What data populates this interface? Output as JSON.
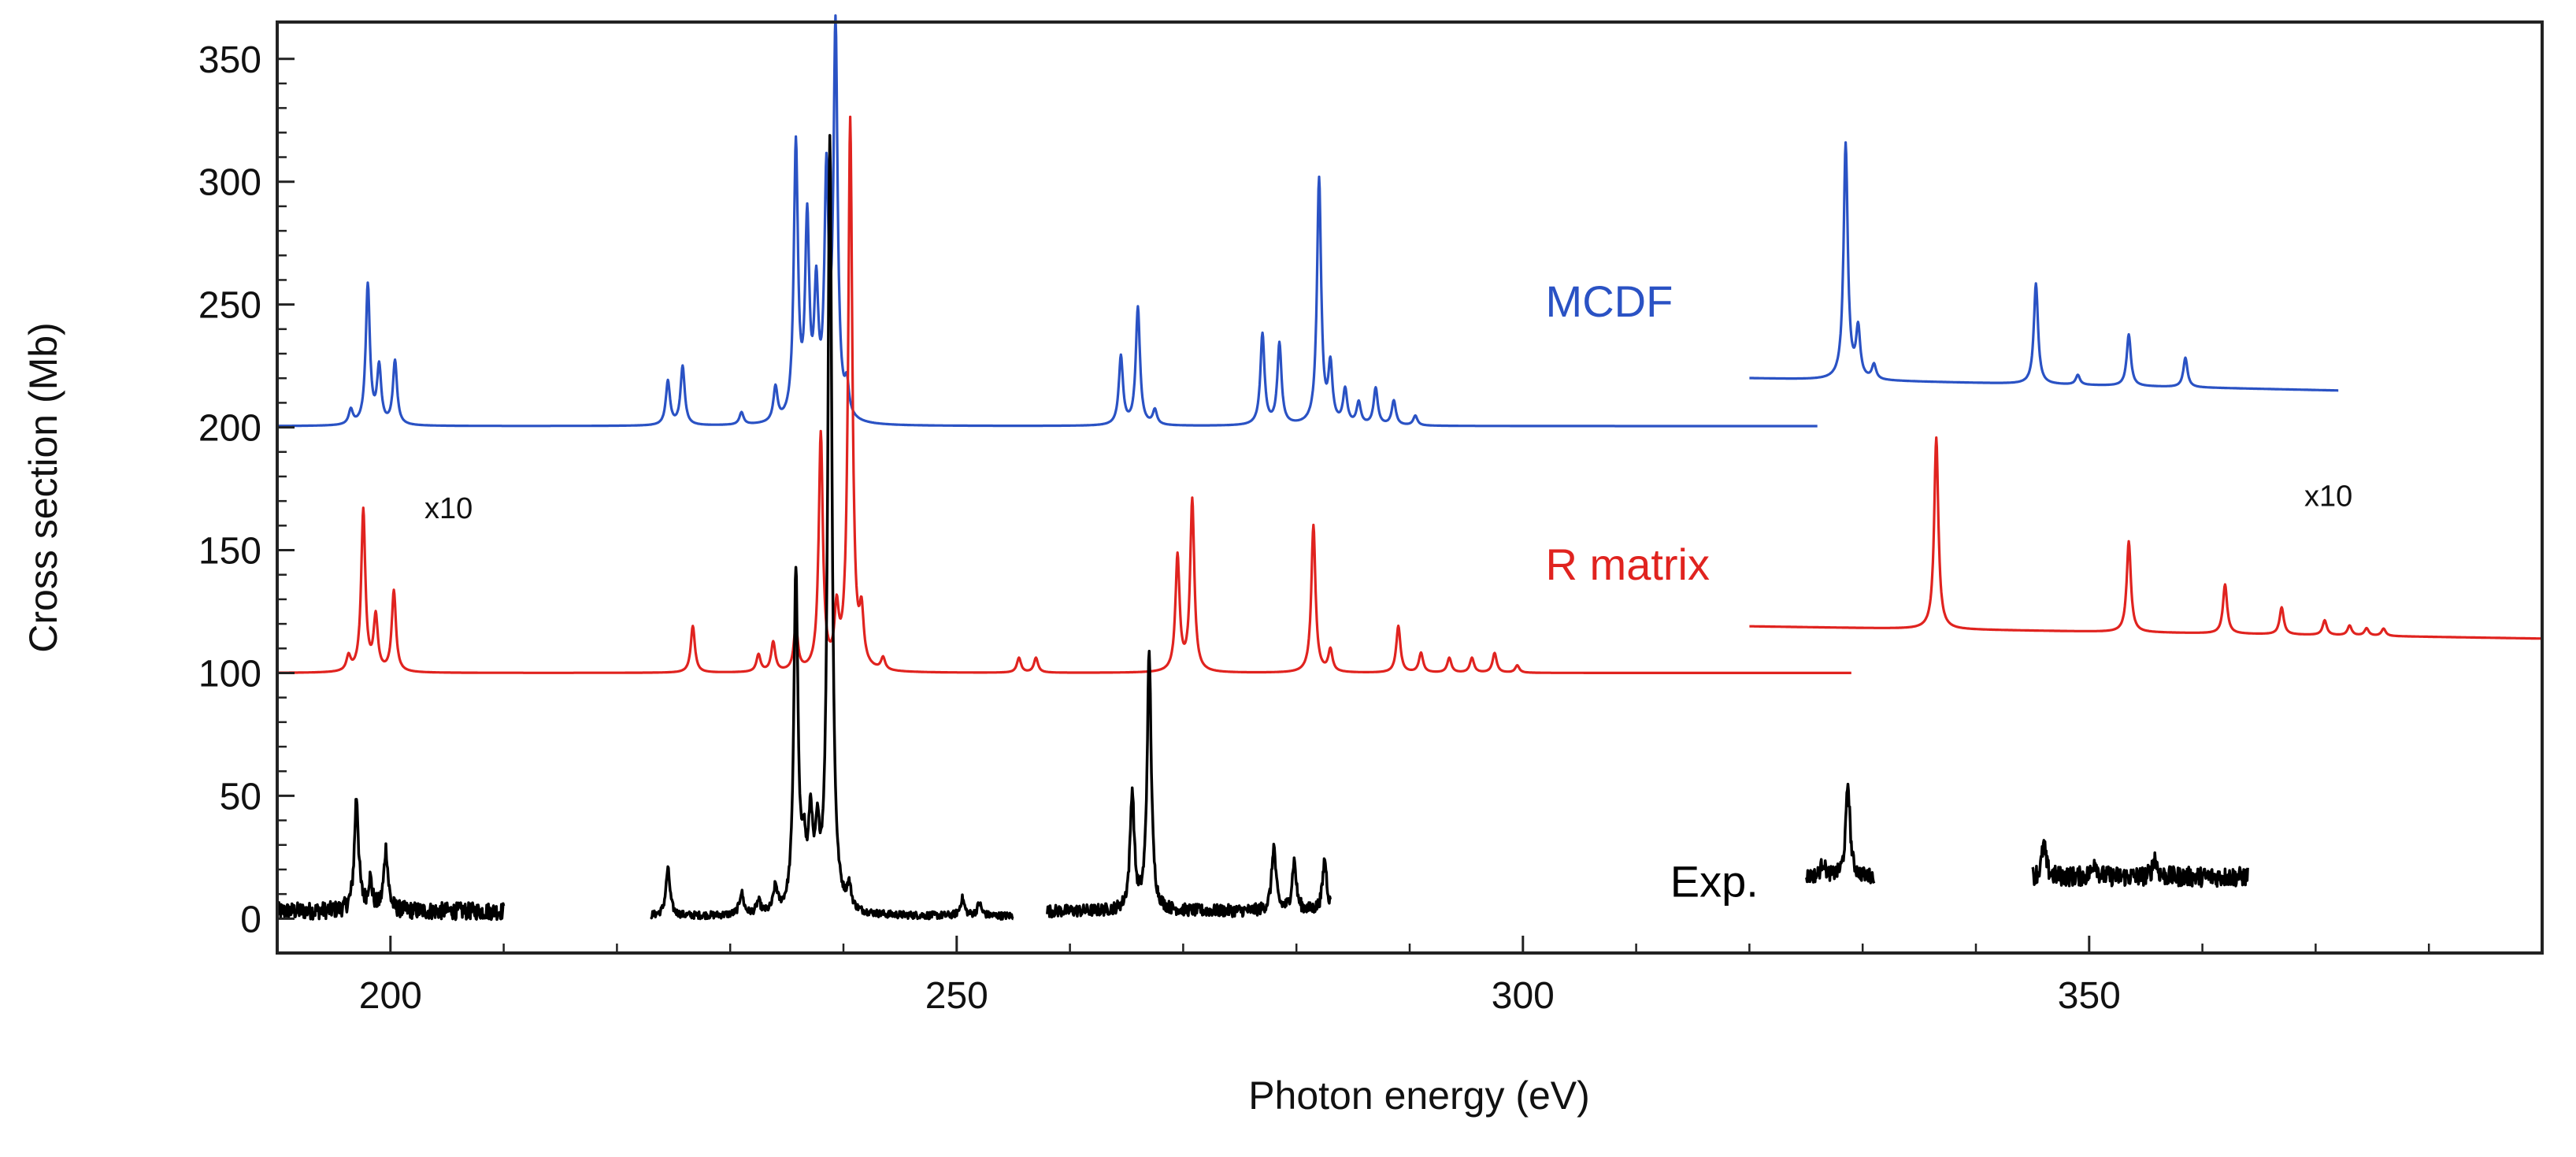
{
  "chart_data": {
    "type": "line",
    "title": "",
    "xlabel": "Photon energy (eV)",
    "ylabel": "Cross section (Mb)",
    "xlim": [
      190,
      390
    ],
    "ylim": [
      -14,
      365
    ],
    "xticks": [
      200,
      250,
      300,
      350
    ],
    "yticks": [
      0,
      50,
      100,
      150,
      200,
      250,
      300,
      350
    ],
    "grid": false,
    "annotations": [
      {
        "text": "MCDF",
        "series": "MCDF",
        "x": 302,
        "y": 245
      },
      {
        "text": "R matrix",
        "series": "R matrix",
        "x": 302,
        "y": 138
      },
      {
        "text": "Exp.",
        "series": "Exp.",
        "x": 313,
        "y": 9
      },
      {
        "text": "x10",
        "series": "note",
        "x": 203,
        "y": 163
      },
      {
        "text": "x10",
        "series": "note",
        "x": 369,
        "y": 168
      }
    ],
    "series": [
      {
        "name": "MCDF",
        "color": "#2a52c4",
        "segments": [
          {
            "x_range": [
              190,
              326
            ],
            "baseline": 200.5,
            "peaks": [
              [
                196.5,
                6
              ],
              [
                198,
                57
              ],
              [
                199,
                23
              ],
              [
                200.4,
                26
              ],
              [
                224.5,
                18
              ],
              [
                225.8,
                24
              ],
              [
                231,
                5
              ],
              [
                234,
                14
              ],
              [
                235.8,
                112
              ],
              [
                236.8,
                79
              ],
              [
                237.6,
                50
              ],
              [
                238.5,
                95
              ],
              [
                239.3,
                158
              ],
              [
                240.3,
                12
              ],
              [
                264.5,
                28
              ],
              [
                266,
                48
              ],
              [
                267.5,
                6
              ],
              [
                277,
                37
              ],
              [
                278.5,
                33
              ],
              [
                282,
                100
              ],
              [
                283,
                23
              ],
              [
                284.3,
                14
              ],
              [
                285.5,
                9
              ],
              [
                287,
                15
              ],
              [
                288.6,
                10
              ],
              [
                290.5,
                4
              ]
            ]
          },
          {
            "x_range": [
              320,
              372
            ],
            "baseline": 220,
            "baseline_end": 215,
            "peaks": [
              [
                328.5,
                96
              ],
              [
                329.6,
                20
              ],
              [
                331,
                6
              ],
              [
                345.3,
                41
              ],
              [
                349,
                4
              ],
              [
                353.5,
                21
              ],
              [
                358.5,
                12
              ]
            ]
          }
        ]
      },
      {
        "name": "R matrix",
        "color": "#e0231f",
        "segments": [
          {
            "x_range": [
              190,
              329
            ],
            "baseline": 100,
            "peaks": [
              [
                196.3,
                6
              ],
              [
                197.6,
                66
              ],
              [
                198.7,
                22
              ],
              [
                200.3,
                33
              ],
              [
                226.7,
                19
              ],
              [
                232.5,
                7
              ],
              [
                233.8,
                12
              ],
              [
                235.8,
                18
              ],
              [
                238,
                96
              ],
              [
                239.4,
                22
              ],
              [
                240.6,
                224
              ],
              [
                241.6,
                20
              ],
              [
                243.5,
                5
              ],
              [
                255.5,
                6
              ],
              [
                257,
                6
              ],
              [
                269.5,
                47
              ],
              [
                270.8,
                70
              ],
              [
                281.5,
                60
              ],
              [
                283,
                9
              ],
              [
                289,
                19
              ],
              [
                291,
                8
              ],
              [
                293.5,
                6
              ],
              [
                295.5,
                6
              ],
              [
                297.5,
                8
              ],
              [
                299.5,
                3
              ]
            ]
          },
          {
            "x_range": [
              320,
              390
            ],
            "baseline": 119,
            "baseline_end": 114,
            "peaks": [
              [
                336.5,
                78
              ],
              [
                353.5,
                37
              ],
              [
                362,
                20
              ],
              [
                367,
                11
              ],
              [
                370.8,
                6
              ],
              [
                373,
                4
              ],
              [
                374.5,
                3
              ],
              [
                376,
                3
              ]
            ]
          }
        ]
      },
      {
        "name": "Exp.",
        "color": "#000000",
        "segments": [
          {
            "x_range": [
              190,
              210
            ],
            "baseline": 3,
            "noise": 3.5,
            "peaks": [
              [
                197,
                46
              ],
              [
                198.2,
                12
              ],
              [
                199.6,
                25
              ]
            ]
          },
          {
            "x_range": [
              223,
              255
            ],
            "baseline": 1,
            "noise": 1.5,
            "peaks": [
              [
                224.5,
                19
              ],
              [
                231,
                9
              ],
              [
                232.5,
                5
              ],
              [
                234,
                10
              ],
              [
                235.8,
                138
              ],
              [
                236.5,
                22
              ],
              [
                237.1,
                35
              ],
              [
                237.7,
                26
              ],
              [
                238.8,
                316
              ],
              [
                240.5,
                9
              ],
              [
                250.5,
                7
              ],
              [
                252,
                5
              ]
            ]
          },
          {
            "x_range": [
              258,
              283
            ],
            "baseline": 3,
            "noise": 2.5,
            "peaks": [
              [
                265.5,
                48
              ],
              [
                267,
                104
              ],
              [
                278,
                26
              ],
              [
                279.8,
                20
              ],
              [
                282.5,
                21
              ]
            ]
          },
          {
            "x_range": [
              325,
              331
            ],
            "baseline": 17,
            "noise": 3,
            "peaks": [
              [
                328.7,
                38
              ],
              [
                326.5,
                6
              ]
            ]
          },
          {
            "x_range": [
              345,
              364
            ],
            "baseline": 17,
            "noise": 4,
            "peaks": [
              [
                346,
                13
              ],
              [
                350.5,
                7
              ],
              [
                355.8,
                8
              ]
            ]
          }
        ]
      }
    ]
  }
}
